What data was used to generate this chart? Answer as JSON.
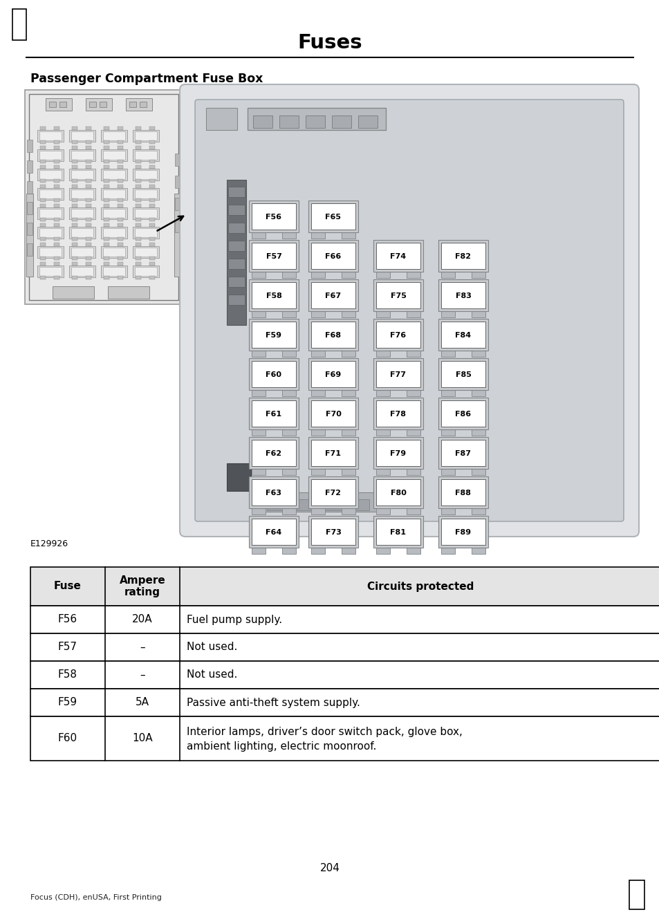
{
  "title": "Fuses",
  "section_title": "Passenger Compartment Fuse Box",
  "image_label": "E129926",
  "page_number": "204",
  "footer_text": "Focus (CDH), enUSA, First Printing",
  "table_headers": [
    "Fuse",
    "Ampere\nrating",
    "Circuits protected"
  ],
  "table_rows": [
    [
      "F56",
      "20A",
      "Fuel pump supply."
    ],
    [
      "F57",
      "–",
      "Not used."
    ],
    [
      "F58",
      "–",
      "Not used."
    ],
    [
      "F59",
      "5A",
      "Passive anti-theft system supply."
    ],
    [
      "F60",
      "10A",
      "Interior lamps, driver’s door switch pack, glove box,\nambient lighting, electric moonroof."
    ]
  ],
  "col1_fuses": [
    "F56",
    "F57",
    "F58",
    "F59",
    "F60",
    "F61",
    "F62",
    "F63",
    "F64"
  ],
  "col2_fuses": [
    "F65",
    "F66",
    "F67",
    "F68",
    "F69",
    "F70",
    "F71",
    "F72",
    "F73"
  ],
  "col3_fuses": [
    "F74",
    "F75",
    "F76",
    "F77",
    "F78",
    "F79",
    "F80",
    "F81"
  ],
  "col4_fuses": [
    "F82",
    "F83",
    "F84",
    "F85",
    "F86",
    "F87",
    "F88",
    "F89"
  ],
  "bg_color": "#ffffff",
  "right_box_bg": "#dde0e3",
  "right_box_outer": "#c8ccd0",
  "fuse_body_color": "#c0c2c4",
  "fuse_tab_color": "#b0b2b4",
  "fuse_label_bg": "#ffffff",
  "table_header_bg": "#e0e0e0",
  "table_border_color": "#000000"
}
